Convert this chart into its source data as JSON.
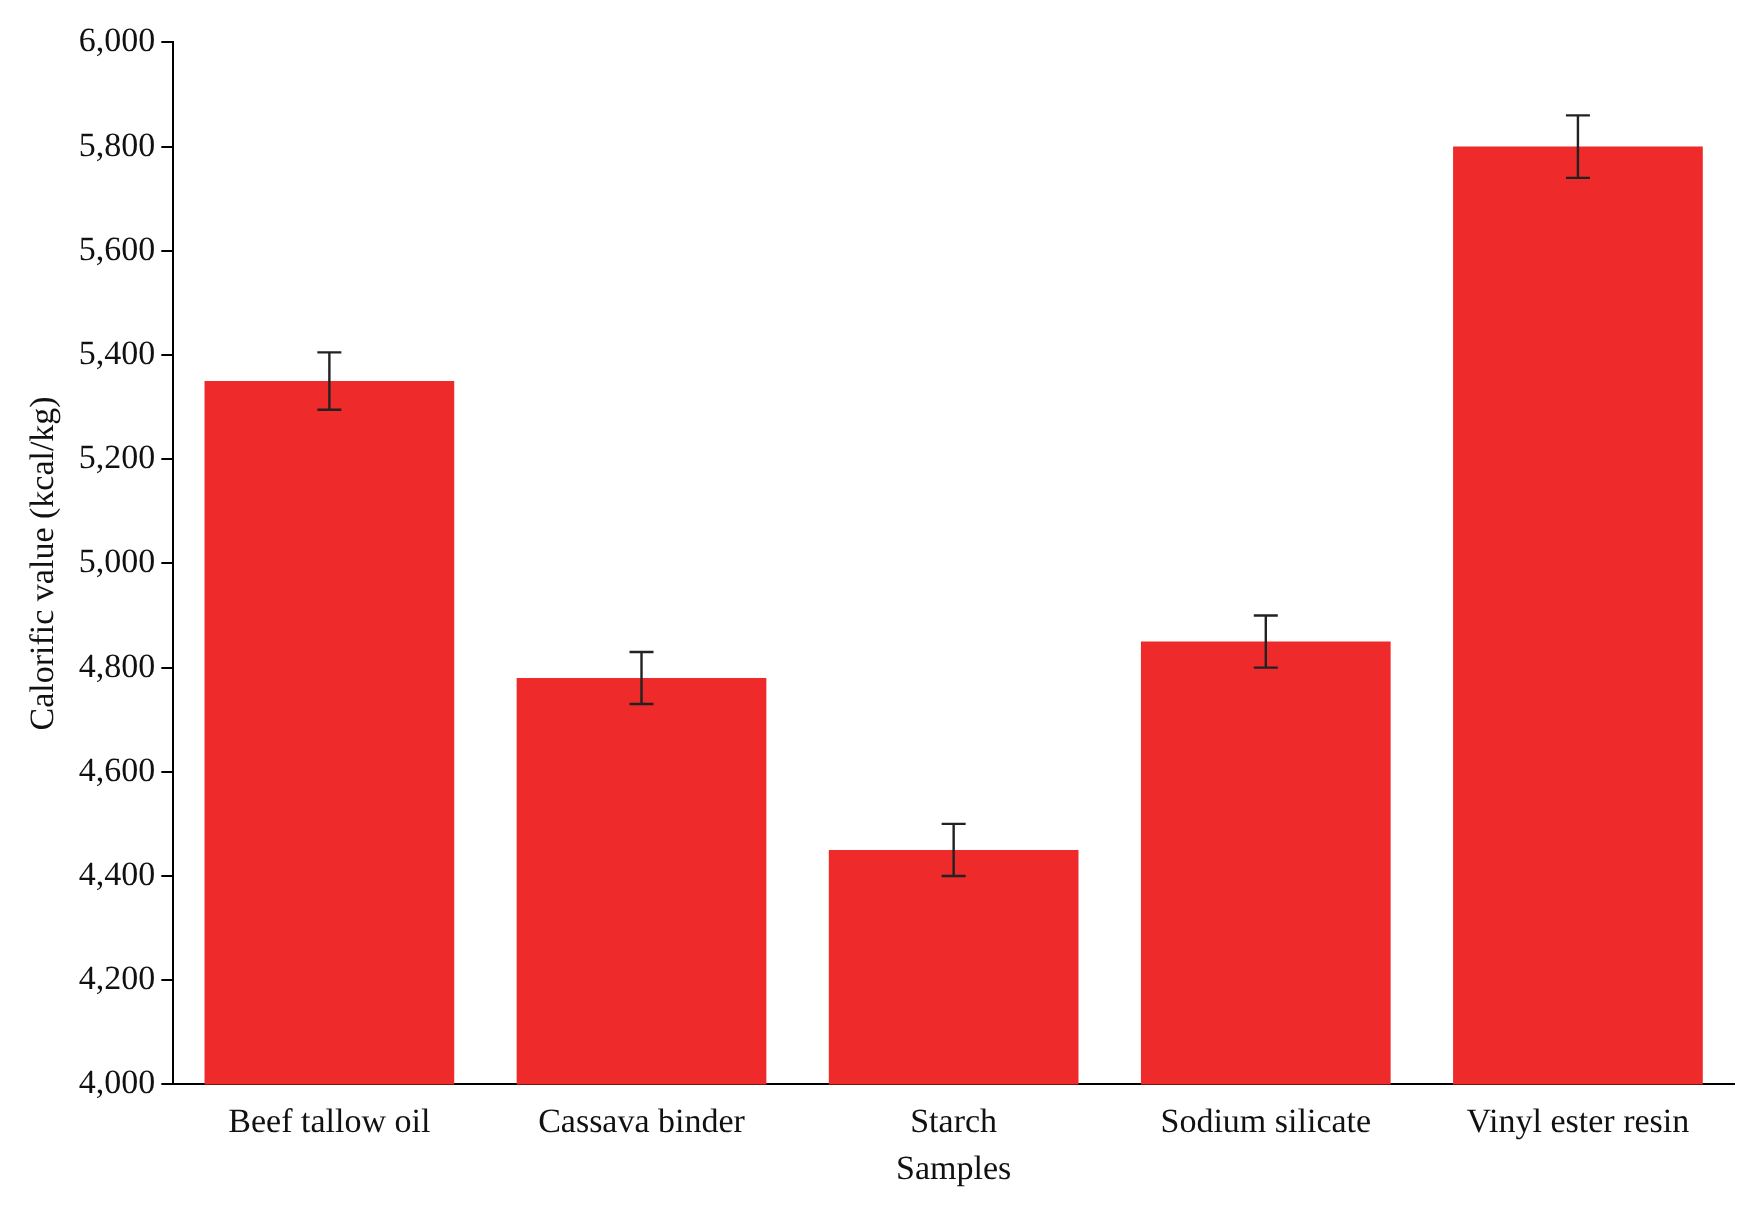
{
  "chart_data": {
    "type": "bar",
    "xlabel": "Samples",
    "ylabel": "Calorific value (kcal/kg)",
    "categories": [
      "Beef tallow oil",
      "Cassava binder",
      "Starch",
      "Sodium silicate",
      "Vinyl ester resin"
    ],
    "values": [
      5350,
      4780,
      4450,
      4850,
      5800
    ],
    "errors": [
      55,
      50,
      50,
      50,
      60
    ],
    "color": "#ee2a2a",
    "ylim": [
      4000,
      6000
    ],
    "yticks": [
      {
        "value": 4000,
        "label": "4,000"
      },
      {
        "value": 4200,
        "label": "4,200"
      },
      {
        "value": 4400,
        "label": "4,400"
      },
      {
        "value": 4600,
        "label": "4,600"
      },
      {
        "value": 4800,
        "label": "4,800"
      },
      {
        "value": 5000,
        "label": "5,000"
      },
      {
        "value": 5200,
        "label": "5,200"
      },
      {
        "value": 5400,
        "label": "5,400"
      },
      {
        "value": 5600,
        "label": "5,600"
      },
      {
        "value": 5800,
        "label": "5,800"
      },
      {
        "value": 6000,
        "label": "6,000"
      }
    ],
    "grid": false,
    "legend": false
  }
}
